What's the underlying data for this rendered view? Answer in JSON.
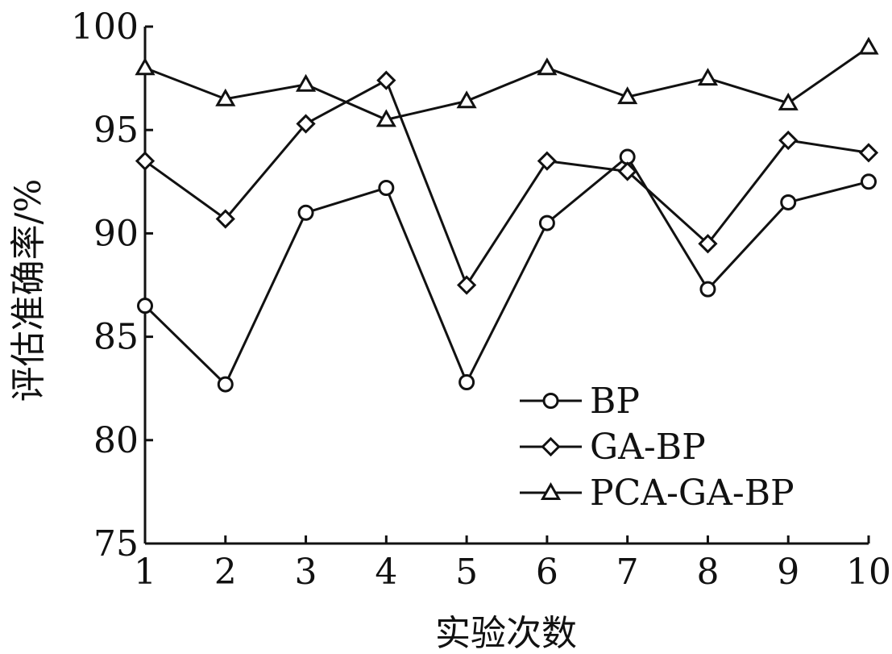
{
  "chart_data": {
    "type": "line",
    "title": "",
    "xlabel": "实验次数",
    "ylabel": "评估准确率/%",
    "x": [
      1,
      2,
      3,
      4,
      5,
      6,
      7,
      8,
      9,
      10
    ],
    "xlim": [
      1,
      10
    ],
    "ylim": [
      75,
      100
    ],
    "yticks": [
      75,
      80,
      85,
      90,
      95,
      100
    ],
    "grid": false,
    "legend_position": "bottom-right",
    "series": [
      {
        "name": "BP",
        "marker": "circle",
        "values": [
          86.5,
          82.7,
          91.0,
          92.2,
          82.8,
          90.5,
          93.7,
          87.3,
          91.5,
          92.5
        ]
      },
      {
        "name": "GA-BP",
        "marker": "diamond",
        "values": [
          93.5,
          90.7,
          95.3,
          97.4,
          87.5,
          93.5,
          93.0,
          89.5,
          94.5,
          93.9
        ]
      },
      {
        "name": "PCA-GA-BP",
        "marker": "triangle",
        "values": [
          98.0,
          96.5,
          97.2,
          95.5,
          96.4,
          98.0,
          96.6,
          97.5,
          96.3,
          99.0
        ]
      }
    ]
  }
}
